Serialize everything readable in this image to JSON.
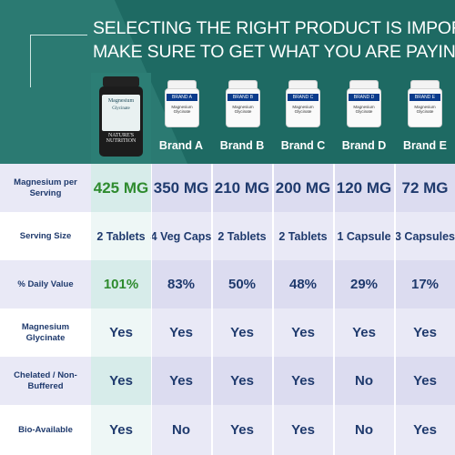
{
  "header": {
    "line1": "SELECTING THE RIGHT PRODUCT IS IMPORTANT!",
    "line2": "MAKE SURE TO GET WHAT YOU ARE PAYING FOR"
  },
  "featured_product": {
    "name": "Magnesium",
    "variant": "Glycinate",
    "logo_text": "NATURE'S NUTRITION"
  },
  "brands": [
    {
      "name": "Brand A",
      "bottle_label": "BRAND A",
      "bottle_text": "Magnesium Glycinate"
    },
    {
      "name": "Brand B",
      "bottle_label": "BRAND B",
      "bottle_text": "Magnesium Glycinate"
    },
    {
      "name": "Brand C",
      "bottle_label": "BRAND C",
      "bottle_text": "Magnesium Glycinate"
    },
    {
      "name": "Brand D",
      "bottle_label": "BRAND D",
      "bottle_text": "Magnesium Glycinate"
    },
    {
      "name": "Brand E",
      "bottle_label": "BRAND E",
      "bottle_text": "Magnesium Glycinate"
    }
  ],
  "rows": [
    {
      "label": "Magnesium per Serving",
      "featured": "425 MG",
      "values": [
        "350 MG",
        "210 MG",
        "200 MG",
        "120 MG",
        "72 MG"
      ]
    },
    {
      "label": "Serving Size",
      "featured": "2 Tablets",
      "values": [
        "4 Veg Caps",
        "2 Tablets",
        "2 Tablets",
        "1 Capsule",
        "3 Capsules"
      ]
    },
    {
      "label": "% Daily Value",
      "featured": "101%",
      "values": [
        "83%",
        "50%",
        "48%",
        "29%",
        "17%"
      ]
    },
    {
      "label": "Magnesium Glycinate",
      "featured": "Yes",
      "values": [
        "Yes",
        "Yes",
        "Yes",
        "Yes",
        "Yes"
      ]
    },
    {
      "label": "Chelated / Non-Buffered",
      "featured": "Yes",
      "values": [
        "Yes",
        "Yes",
        "Yes",
        "No",
        "Yes"
      ]
    },
    {
      "label": "Bio-Available",
      "featured": "Yes",
      "values": [
        "No",
        "Yes",
        "Yes",
        "No",
        "Yes"
      ]
    }
  ],
  "colors": {
    "header_bg": "#1e6a63",
    "featured_text": "#2e8b2e",
    "value_text": "#1f3a6d",
    "band_a": "#dcdcf0",
    "band_b": "#e9e9f6",
    "featured_col": "#d7ecea"
  }
}
